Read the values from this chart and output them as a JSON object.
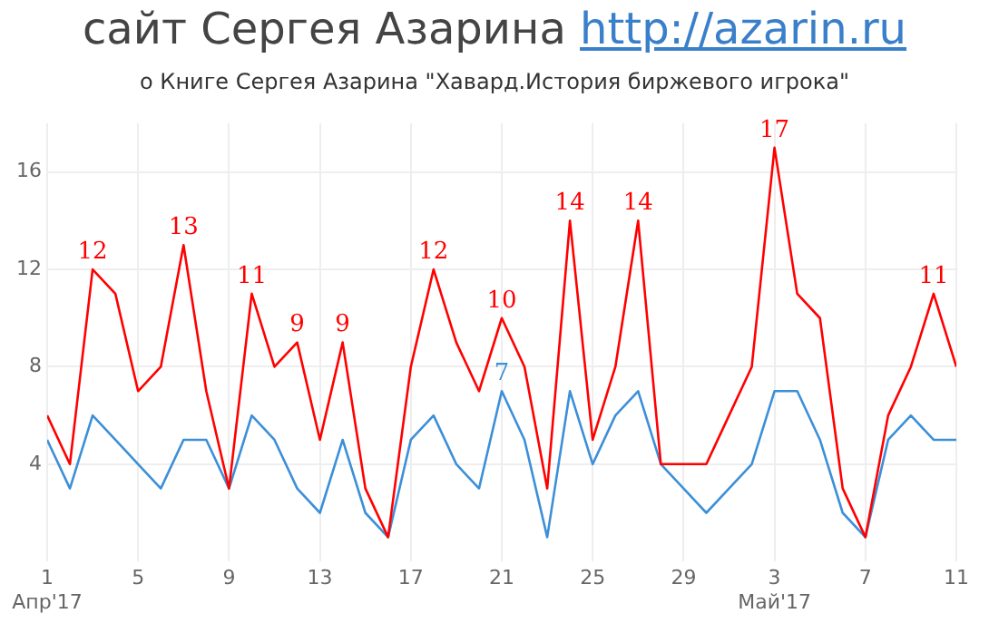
{
  "chart_data": {
    "type": "line",
    "title": "сайт Сергея Азарина http://azarin.ru",
    "subtitle": "о Книге Сергея Азарина \"Хавард.История биржевого игрока\"",
    "x": [
      "2017-04-01",
      "2017-04-02",
      "2017-04-03",
      "2017-04-04",
      "2017-04-05",
      "2017-04-06",
      "2017-04-07",
      "2017-04-08",
      "2017-04-09",
      "2017-04-10",
      "2017-04-11",
      "2017-04-12",
      "2017-04-13",
      "2017-04-14",
      "2017-04-15",
      "2017-04-16",
      "2017-04-17",
      "2017-04-18",
      "2017-04-19",
      "2017-04-20",
      "2017-04-21",
      "2017-04-22",
      "2017-04-23",
      "2017-04-24",
      "2017-04-25",
      "2017-04-26",
      "2017-04-27",
      "2017-04-28",
      "2017-04-29",
      "2017-04-30",
      "2017-05-01",
      "2017-05-02",
      "2017-05-03",
      "2017-05-04",
      "2017-05-05",
      "2017-05-06",
      "2017-05-07",
      "2017-05-08",
      "2017-05-09",
      "2017-05-10",
      "2017-05-11"
    ],
    "series": [
      {
        "color": "#ff0000",
        "values": [
          6,
          4,
          12,
          11,
          7,
          8,
          13,
          7,
          3,
          11,
          8,
          9,
          5,
          9,
          3,
          1,
          8,
          12,
          9,
          7,
          10,
          8,
          3,
          14,
          5,
          8,
          14,
          4,
          4,
          4,
          6,
          8,
          17,
          11,
          10,
          3,
          1,
          6,
          8,
          11,
          8
        ],
        "value_labels": [
          null,
          null,
          "12",
          null,
          null,
          null,
          "13",
          null,
          null,
          "11",
          null,
          "9",
          null,
          "9",
          null,
          null,
          null,
          "12",
          null,
          null,
          "10",
          null,
          null,
          "14",
          null,
          null,
          "14",
          null,
          null,
          null,
          null,
          null,
          "17",
          null,
          null,
          null,
          null,
          null,
          null,
          "11",
          null
        ]
      },
      {
        "color": "#3c8fd8",
        "values": [
          5,
          3,
          6,
          5,
          4,
          3,
          5,
          5,
          3,
          6,
          5,
          3,
          2,
          5,
          2,
          1,
          5,
          6,
          4,
          3,
          7,
          5,
          1,
          7,
          4,
          6,
          7,
          4,
          3,
          2,
          3,
          4,
          7,
          7,
          5,
          2,
          1,
          5,
          6,
          5,
          5
        ],
        "value_labels": [
          null,
          null,
          null,
          null,
          null,
          null,
          null,
          null,
          null,
          null,
          null,
          null,
          null,
          null,
          null,
          null,
          null,
          null,
          null,
          null,
          "7",
          null,
          null,
          null,
          null,
          null,
          null,
          null,
          null,
          null,
          null,
          null,
          null,
          null,
          null,
          null,
          null,
          null,
          null,
          null,
          null
        ]
      }
    ],
    "xlim": [
      "2017-04-01",
      "2017-05-11"
    ],
    "xticks": [
      {
        "value": "2017-04-01",
        "label": "1\nАпр'17"
      },
      {
        "value": "2017-04-05",
        "label": "5"
      },
      {
        "value": "2017-04-09",
        "label": "9"
      },
      {
        "value": "2017-04-13",
        "label": "13"
      },
      {
        "value": "2017-04-17",
        "label": "17"
      },
      {
        "value": "2017-04-21",
        "label": "21"
      },
      {
        "value": "2017-04-25",
        "label": "25"
      },
      {
        "value": "2017-04-29",
        "label": "29"
      },
      {
        "value": "2017-05-03",
        "label": "3\nМай'17"
      },
      {
        "value": "2017-05-07",
        "label": "7"
      },
      {
        "value": "2017-05-11",
        "label": "11"
      }
    ],
    "ylim": [
      0,
      18
    ],
    "yticks": [
      4,
      8,
      12,
      16
    ],
    "grid": true,
    "legend": false,
    "marker": "none",
    "line_style": "solid"
  }
}
